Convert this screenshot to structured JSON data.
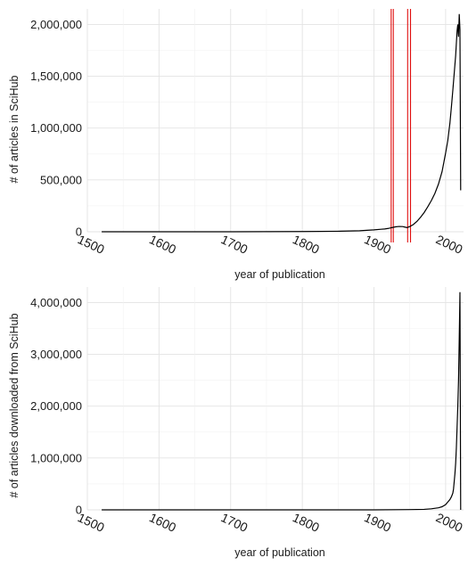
{
  "chart_data": [
    {
      "type": "line",
      "title": "",
      "xlabel": "year of publication",
      "ylabel": "# of articles in SciHub",
      "xlim": [
        1500,
        2025
      ],
      "ylim": [
        0,
        2150000
      ],
      "xticks": [
        1500,
        1600,
        1700,
        1800,
        1900,
        2000
      ],
      "xtick_labels": [
        "1500",
        "1600",
        "1700",
        "1800",
        "1900",
        "2000"
      ],
      "yticks": [
        0,
        500000,
        1000000,
        1500000,
        2000000
      ],
      "ytick_labels": [
        "0",
        "500,000",
        "1,000,000",
        "1,500,000",
        "2,000,000"
      ],
      "grid": true,
      "series": [
        {
          "color": "#000000",
          "x": [
            1520,
            1700,
            1800,
            1850,
            1880,
            1900,
            1910,
            1915,
            1920,
            1925,
            1930,
            1935,
            1940,
            1943,
            1946,
            1950,
            1955,
            1960,
            1965,
            1970,
            1975,
            1980,
            1985,
            1990,
            1995,
            2000,
            2003,
            2006,
            2008,
            2010,
            2012,
            2014,
            2015,
            2016,
            2017,
            2018,
            2019,
            2020,
            2021
          ],
          "y": [
            0,
            0,
            2000,
            5000,
            10000,
            18000,
            24000,
            27000,
            32000,
            40000,
            47000,
            51000,
            50000,
            45000,
            40000,
            50000,
            70000,
            100000,
            140000,
            185000,
            240000,
            300000,
            370000,
            460000,
            580000,
            760000,
            880000,
            1050000,
            1200000,
            1360000,
            1530000,
            1700000,
            1820000,
            1940000,
            2000000,
            1880000,
            2100000,
            1950000,
            400000
          ]
        }
      ],
      "vertical_lines": {
        "color": "#e01010",
        "x": [
          1924,
          1927,
          1947,
          1951
        ]
      }
    },
    {
      "type": "line",
      "title": "",
      "xlabel": "year of publication",
      "ylabel": "# of articles downloaded from SciHub",
      "xlim": [
        1500,
        2025
      ],
      "ylim": [
        0,
        4300000
      ],
      "xticks": [
        1500,
        1600,
        1700,
        1800,
        1900,
        2000
      ],
      "xtick_labels": [
        "1500",
        "1600",
        "1700",
        "1800",
        "1900",
        "2000"
      ],
      "yticks": [
        0,
        1000000,
        2000000,
        3000000,
        4000000
      ],
      "ytick_labels": [
        "0",
        "1,000,000",
        "2,000,000",
        "3,000,000",
        "4,000,000"
      ],
      "grid": true,
      "series": [
        {
          "color": "#000000",
          "x": [
            1520,
            1900,
            1950,
            1970,
            1980,
            1990,
            1995,
            2000,
            2003,
            2006,
            2008,
            2010,
            2011,
            2012,
            2013,
            2014,
            2015,
            2016,
            2017,
            2018,
            2019,
            2020,
            2021
          ],
          "y": [
            0,
            0,
            5000,
            10000,
            20000,
            40000,
            60000,
            100000,
            150000,
            200000,
            250000,
            320000,
            400000,
            550000,
            700000,
            900000,
            1200000,
            1600000,
            2000000,
            2500000,
            3300000,
            4200000,
            0
          ]
        }
      ]
    }
  ]
}
